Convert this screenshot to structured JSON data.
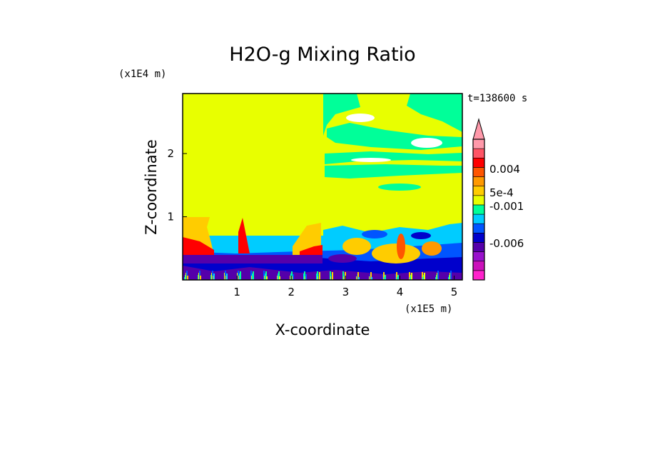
{
  "chart_data": {
    "type": "heatmap",
    "title": "H2O-g Mixing Ratio",
    "xlabel": "X-coordinate",
    "ylabel": "Z-coordinate",
    "x_unit": "(x1E5 m)",
    "y_unit": "(x1E4 m)",
    "time_label": "t=138600 s",
    "xlim": [
      0,
      5.15
    ],
    "ylim": [
      0,
      2.95
    ],
    "x_ticks": [
      "1",
      "2",
      "3",
      "4",
      "5"
    ],
    "y_ticks": [
      "1",
      "2"
    ],
    "colorbar": {
      "colors": [
        "#ff22cc",
        "#cc11bb",
        "#9911cc",
        "#5500aa",
        "#0000cc",
        "#0055ff",
        "#00ccff",
        "#00ff99",
        "#e8ff00",
        "#ffcc00",
        "#ff9900",
        "#ff5500",
        "#ff0000",
        "#ff5566",
        "#ff99aa"
      ],
      "labels": [
        "0.004",
        "5e-4",
        "-0.001",
        "-0.006"
      ]
    }
  },
  "colors": {
    "background": "#e8ff00",
    "frame": "#000000"
  }
}
